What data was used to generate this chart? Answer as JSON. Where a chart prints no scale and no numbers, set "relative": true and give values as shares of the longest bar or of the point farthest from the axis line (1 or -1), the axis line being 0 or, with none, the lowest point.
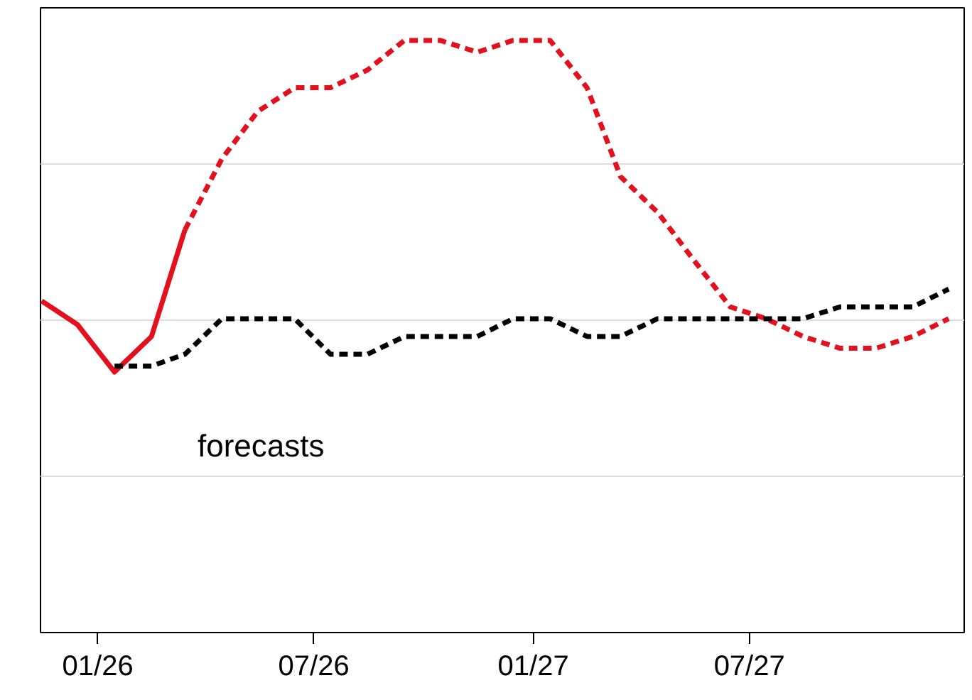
{
  "chart_data": {
    "type": "line",
    "relative": true,
    "grid": "y",
    "marker": "none",
    "xlim": [
      "2025-11-14",
      "2027-12-28"
    ],
    "xticks": [
      {
        "value": "2026-01-01",
        "label": "01/26"
      },
      {
        "value": "2026-07-01",
        "label": "07/26"
      },
      {
        "value": "2027-01-01",
        "label": "01/27"
      },
      {
        "value": "2027-07-01",
        "label": "07/27"
      }
    ],
    "annotations": [
      "forecasts"
    ],
    "series": [
      {
        "color": "#e3101e",
        "line_style": "solid",
        "x": [
          "2025-11-15",
          "2025-12-15",
          "2026-01-15",
          "2026-02-15",
          "2026-03-15"
        ],
        "values": [
          0.56,
          0.52,
          0.44,
          0.5,
          0.68
        ]
      },
      {
        "color": "#e3101e",
        "line_style": "dashed",
        "x": [
          "2026-03-15",
          "2026-04-15",
          "2026-05-15",
          "2026-06-15",
          "2026-07-15",
          "2026-08-15",
          "2026-09-15",
          "2026-10-15",
          "2026-11-15",
          "2026-12-15",
          "2027-01-15",
          "2027-02-15",
          "2027-03-15",
          "2027-04-15",
          "2027-05-15",
          "2027-06-15",
          "2027-07-15",
          "2027-08-15",
          "2027-09-15",
          "2027-10-15",
          "2027-11-15",
          "2027-12-15"
        ],
        "values": [
          0.68,
          0.8,
          0.88,
          0.92,
          0.92,
          0.95,
          1,
          1,
          0.98,
          1,
          1,
          0.92,
          0.77,
          0.71,
          0.63,
          0.55,
          0.53,
          0.5,
          0.48,
          0.48,
          0.5,
          0.53
        ]
      },
      {
        "color": "#000000",
        "line_style": "dashed",
        "x": [
          "2026-01-15",
          "2026-02-15",
          "2026-03-15",
          "2026-04-15",
          "2026-05-15",
          "2026-06-15",
          "2026-07-15",
          "2026-08-15",
          "2026-09-15",
          "2026-10-15",
          "2026-11-15",
          "2026-12-15",
          "2027-01-15",
          "2027-02-15",
          "2027-03-15",
          "2027-04-15",
          "2027-05-15",
          "2027-06-15",
          "2027-07-15",
          "2027-08-15",
          "2027-09-15",
          "2027-10-15",
          "2027-11-15",
          "2027-12-15"
        ],
        "values": [
          0.45,
          0.45,
          0.47,
          0.53,
          0.53,
          0.53,
          0.47,
          0.47,
          0.5,
          0.5,
          0.5,
          0.53,
          0.53,
          0.5,
          0.5,
          0.53,
          0.53,
          0.53,
          0.53,
          0.53,
          0.55,
          0.55,
          0.55,
          0.58
        ]
      }
    ]
  }
}
